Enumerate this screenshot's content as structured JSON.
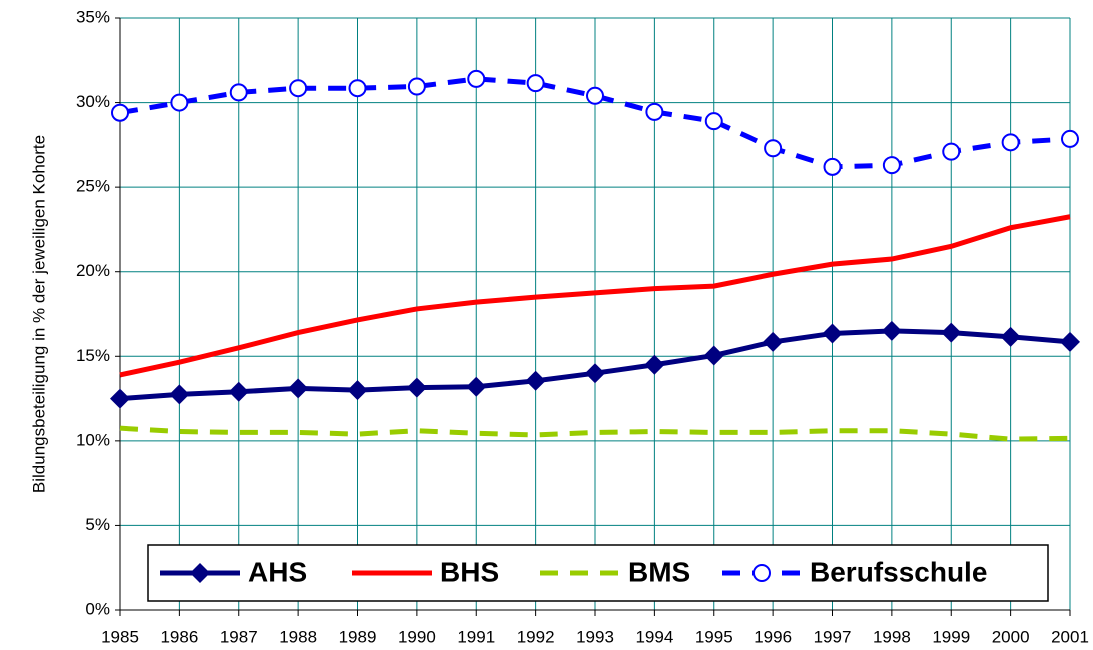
{
  "chart_data": {
    "type": "line",
    "y_label": "Bildungsbeteiligung in % der jeweiligen Kohorte",
    "categories": [
      "1985",
      "1986",
      "1987",
      "1988",
      "1989",
      "1990",
      "1991",
      "1992",
      "1993",
      "1994",
      "1995",
      "1996",
      "1997",
      "1998",
      "1999",
      "2000",
      "2001"
    ],
    "series": [
      {
        "name": "AHS",
        "color": "#000080",
        "marker": "diamond",
        "dash": false,
        "values": [
          12.5,
          12.75,
          12.9,
          13.1,
          13.0,
          13.15,
          13.2,
          13.55,
          14.0,
          14.5,
          15.05,
          15.85,
          16.35,
          16.5,
          16.4,
          16.15,
          15.85
        ]
      },
      {
        "name": "BHS",
        "color": "#ff0000",
        "marker": "none",
        "dash": false,
        "values": [
          13.9,
          14.65,
          15.5,
          16.4,
          17.15,
          17.8,
          18.2,
          18.5,
          18.75,
          19.0,
          19.15,
          19.85,
          20.45,
          20.75,
          21.5,
          22.6,
          23.25
        ]
      },
      {
        "name": "BMS",
        "color": "#99cc00",
        "marker": "none",
        "dash": true,
        "values": [
          10.75,
          10.55,
          10.5,
          10.5,
          10.4,
          10.6,
          10.45,
          10.35,
          10.5,
          10.55,
          10.5,
          10.5,
          10.6,
          10.6,
          10.4,
          10.1,
          10.15
        ]
      },
      {
        "name": "Berufsschule",
        "color": "#0000ff",
        "marker": "circle",
        "dash": true,
        "values": [
          29.4,
          30.0,
          30.6,
          30.85,
          30.85,
          30.95,
          31.4,
          31.15,
          30.4,
          29.45,
          28.9,
          27.3,
          26.2,
          26.3,
          27.1,
          27.65,
          27.85
        ]
      }
    ],
    "ylim": [
      0,
      35
    ],
    "yticks": [
      {
        "value": 0,
        "label": "0%"
      },
      {
        "value": 5,
        "label": "5%"
      },
      {
        "value": 10,
        "label": "10%"
      },
      {
        "value": 15,
        "label": "15%"
      },
      {
        "value": 20,
        "label": "20%"
      },
      {
        "value": 25,
        "label": "25%"
      },
      {
        "value": 30,
        "label": "30%"
      },
      {
        "value": 35,
        "label": "35%"
      }
    ],
    "grid": true,
    "grid_color": "#008080",
    "legend": "bottom"
  }
}
